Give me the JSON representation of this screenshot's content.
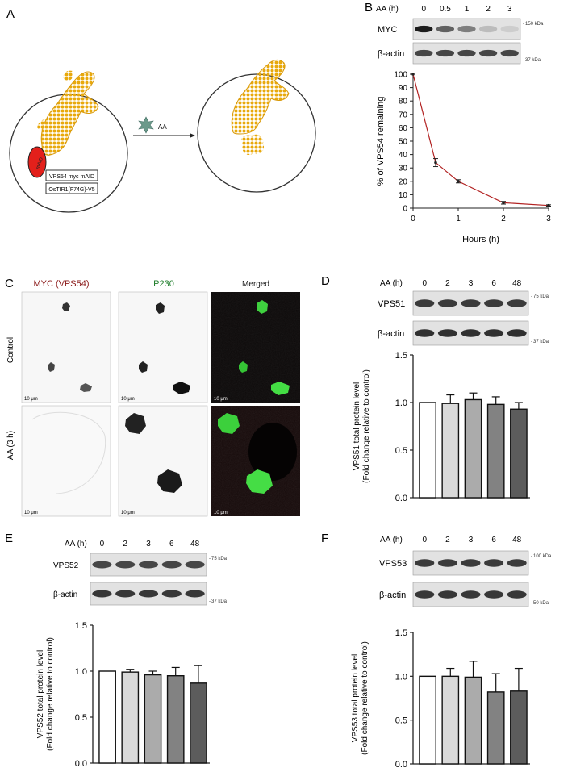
{
  "panels": {
    "A": {
      "letter": "A",
      "label_maid": "mAID",
      "construct_1": "VPS54 myc mAID",
      "construct_2": "OsTIR1(F74G)-V5",
      "treatment": "AA"
    },
    "B": {
      "letter": "B",
      "header_label": "AA (h)",
      "lanes": [
        "0",
        "0.5",
        "1",
        "2",
        "3"
      ],
      "blot_rows": [
        {
          "name": "MYC",
          "marker": "150 kDa"
        },
        {
          "name": "β-actin",
          "marker": "37 kDa"
        }
      ]
    },
    "C": {
      "letter": "C",
      "col_titles": [
        "MYC (VPS54)",
        "P230",
        "Merged"
      ],
      "col_colors": [
        "#8b1a1a",
        "#1e7d2a",
        "#222222"
      ],
      "row_labels": [
        "Control",
        "AA (3 h)"
      ],
      "scale_bar": "10 μm"
    },
    "D": {
      "letter": "D",
      "header_label": "AA (h)",
      "lanes": [
        "0",
        "2",
        "3",
        "6",
        "48"
      ],
      "blot_rows": [
        {
          "name": "VPS51",
          "marker": "75 kDa"
        },
        {
          "name": "β-actin",
          "marker": "37 kDa"
        }
      ]
    },
    "E": {
      "letter": "E",
      "header_label": "AA (h)",
      "lanes": [
        "0",
        "2",
        "3",
        "6",
        "48"
      ],
      "blot_rows": [
        {
          "name": "VPS52",
          "marker": "75 kDa"
        },
        {
          "name": "β-actin",
          "marker": "37 kDa"
        }
      ]
    },
    "F": {
      "letter": "F",
      "header_label": "AA (h)",
      "lanes": [
        "0",
        "2",
        "3",
        "6",
        "48"
      ],
      "blot_rows": [
        {
          "name": "VPS53",
          "marker": "100 kDa"
        },
        {
          "name": "β-actin",
          "marker": "50 kDa"
        }
      ]
    }
  },
  "chart_data": [
    {
      "panel": "B",
      "type": "line",
      "x": [
        0,
        0.5,
        1,
        2,
        3
      ],
      "y": [
        100,
        34,
        20,
        4,
        2
      ],
      "err": [
        0,
        3,
        1.2,
        1,
        0.5
      ],
      "xlabel": "Hours (h)",
      "ylabel": "% of VPS54 remaining",
      "xlim": [
        0,
        3
      ],
      "ylim": [
        0,
        100
      ],
      "xticks": [
        0,
        1,
        2,
        3
      ],
      "yticks": [
        0,
        10,
        20,
        30,
        40,
        50,
        60,
        70,
        80,
        90,
        100
      ],
      "line_color": "#b22222"
    },
    {
      "panel": "D",
      "type": "bar",
      "categories": [
        "0",
        "2",
        "3",
        "6",
        "48"
      ],
      "values": [
        1.0,
        0.99,
        1.03,
        0.98,
        0.93
      ],
      "err": [
        0,
        0.09,
        0.07,
        0.08,
        0.07
      ],
      "ylabel_lines": [
        "VPS51 total protein level",
        "(Fold change  relative to control)"
      ],
      "ylim": [
        0,
        1.5
      ],
      "yticks": [
        "0.0",
        "0.5",
        "1.0",
        "1.5"
      ],
      "bar_colors": [
        "#ffffff",
        "#d9d9d9",
        "#ababab",
        "#828282",
        "#5c5c5c"
      ]
    },
    {
      "panel": "E",
      "type": "bar",
      "categories": [
        "0",
        "2",
        "3",
        "6",
        "48"
      ],
      "values": [
        1.0,
        0.99,
        0.96,
        0.95,
        0.87
      ],
      "err": [
        0,
        0.03,
        0.04,
        0.09,
        0.19
      ],
      "ylabel_lines": [
        "VPS52 total protein level",
        "(Fold change  relative to control)"
      ],
      "ylim": [
        0,
        1.5
      ],
      "yticks": [
        "0.0",
        "0.5",
        "1.0",
        "1.5"
      ],
      "bar_colors": [
        "#ffffff",
        "#d9d9d9",
        "#ababab",
        "#828282",
        "#5c5c5c"
      ]
    },
    {
      "panel": "F",
      "type": "bar",
      "categories": [
        "0",
        "2",
        "3",
        "6",
        "48"
      ],
      "values": [
        1.0,
        1.0,
        0.99,
        0.82,
        0.83
      ],
      "err": [
        0,
        0.09,
        0.18,
        0.21,
        0.26
      ],
      "ylabel_lines": [
        "VPS53 total protein level",
        "(Fold change  relative to control)"
      ],
      "ylim": [
        0,
        1.5
      ],
      "yticks": [
        "0.0",
        "0.5",
        "1.0",
        "1.5"
      ],
      "bar_colors": [
        "#ffffff",
        "#d9d9d9",
        "#ababab",
        "#828282",
        "#5c5c5c"
      ]
    }
  ]
}
